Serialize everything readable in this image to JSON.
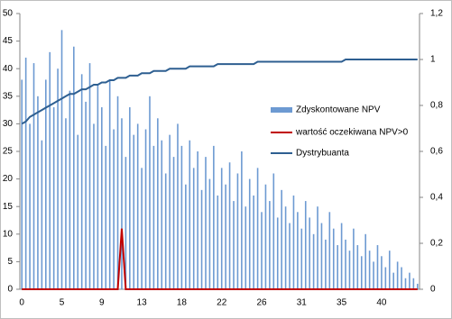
{
  "chart_data": {
    "type": "bar",
    "categories": [
      "0",
      null,
      null,
      null,
      null,
      null,
      null,
      null,
      null,
      null,
      "5",
      null,
      null,
      null,
      null,
      null,
      null,
      null,
      null,
      null,
      "9",
      null,
      null,
      null,
      null,
      null,
      null,
      null,
      null,
      null,
      "13",
      null,
      null,
      null,
      null,
      null,
      null,
      null,
      null,
      null,
      "18",
      null,
      null,
      null,
      null,
      null,
      null,
      null,
      null,
      null,
      "22",
      null,
      null,
      null,
      null,
      null,
      null,
      null,
      null,
      null,
      "26",
      null,
      null,
      null,
      null,
      null,
      null,
      null,
      null,
      null,
      "31",
      null,
      null,
      null,
      null,
      null,
      null,
      null,
      null,
      null,
      "35",
      null,
      null,
      null,
      null,
      null,
      null,
      null,
      null,
      null,
      "40",
      null,
      null,
      null,
      null,
      null,
      null,
      null,
      null,
      null
    ],
    "series": [
      {
        "name": "Zdyskontowane NPV",
        "type": "bar",
        "color": "#6d9ad2",
        "values": [
          38,
          42,
          30,
          41,
          35,
          27,
          38,
          43,
          33,
          40,
          47,
          31,
          36,
          44,
          28,
          39,
          34,
          41,
          30,
          37,
          33,
          26,
          38,
          29,
          35,
          31,
          24,
          33,
          28,
          30,
          22,
          29,
          35,
          26,
          31,
          27,
          21,
          28,
          24,
          30,
          26,
          19,
          27,
          22,
          25,
          18,
          24,
          20,
          26,
          17,
          22,
          19,
          23,
          16,
          21,
          25,
          15,
          20,
          17,
          22,
          14,
          19,
          16,
          21,
          13,
          18,
          15,
          12,
          17,
          14,
          11,
          16,
          13,
          10,
          15,
          12,
          9,
          14,
          11,
          8,
          12,
          9,
          7,
          11,
          8,
          6,
          10,
          7,
          5,
          8,
          6,
          4,
          7,
          3,
          5,
          4,
          2,
          3,
          2,
          1
        ]
      },
      {
        "name": "wartość oczekiwana NPV>0",
        "type": "line",
        "color": "#c00000",
        "values": [
          0,
          0,
          0,
          0,
          0,
          0,
          0,
          0,
          0,
          0,
          0,
          0,
          0,
          0,
          0,
          0,
          0,
          0,
          0,
          0,
          0,
          0,
          0,
          0,
          0,
          11,
          0,
          0,
          0,
          0,
          0,
          0,
          0,
          0,
          0,
          0,
          0,
          0,
          0,
          0,
          0,
          0,
          0,
          0,
          0,
          0,
          0,
          0,
          0,
          0,
          0,
          0,
          0,
          0,
          0,
          0,
          0,
          0,
          0,
          0,
          0,
          0,
          0,
          0,
          0,
          0,
          0,
          0,
          0,
          0,
          0,
          0,
          0,
          0,
          0,
          0,
          0,
          0,
          0,
          0,
          0,
          0,
          0,
          0,
          0,
          0,
          0,
          0,
          0,
          0,
          0,
          0,
          0,
          0,
          0,
          0,
          0,
          0,
          0,
          0
        ]
      },
      {
        "name": "Dystrybuanta",
        "type": "line",
        "axis": "y2",
        "color": "#2e5f91",
        "values": [
          0.72,
          0.73,
          0.75,
          0.76,
          0.77,
          0.78,
          0.79,
          0.8,
          0.81,
          0.82,
          0.83,
          0.84,
          0.85,
          0.85,
          0.86,
          0.87,
          0.87,
          0.88,
          0.89,
          0.89,
          0.9,
          0.9,
          0.91,
          0.91,
          0.92,
          0.92,
          0.92,
          0.93,
          0.93,
          0.93,
          0.94,
          0.94,
          0.94,
          0.95,
          0.95,
          0.95,
          0.95,
          0.96,
          0.96,
          0.96,
          0.96,
          0.96,
          0.97,
          0.97,
          0.97,
          0.97,
          0.97,
          0.97,
          0.97,
          0.98,
          0.98,
          0.98,
          0.98,
          0.98,
          0.98,
          0.98,
          0.98,
          0.98,
          0.98,
          0.99,
          0.99,
          0.99,
          0.99,
          0.99,
          0.99,
          0.99,
          0.99,
          0.99,
          0.99,
          0.99,
          0.99,
          0.99,
          0.99,
          0.99,
          0.99,
          0.99,
          0.99,
          0.99,
          0.99,
          0.99,
          0.99,
          1,
          1,
          1,
          1,
          1,
          1,
          1,
          1,
          1,
          1,
          1,
          1,
          1,
          1,
          1,
          1,
          1,
          1,
          1
        ]
      }
    ],
    "ylim": [
      0,
      50
    ],
    "yticks": [
      0,
      5,
      10,
      15,
      20,
      25,
      30,
      35,
      40,
      45,
      50
    ],
    "y2lim": [
      0,
      1.2
    ],
    "y2ticks": [
      0,
      {
        "value": 0.2,
        "label": "0,2"
      },
      {
        "value": 0.4,
        "label": "0,4"
      },
      {
        "value": 0.6,
        "label": "0,6"
      },
      {
        "value": 0.8,
        "label": "0,8"
      },
      1,
      {
        "value": 1.2,
        "label": "1,2"
      }
    ],
    "grid": false,
    "legend": "right"
  }
}
